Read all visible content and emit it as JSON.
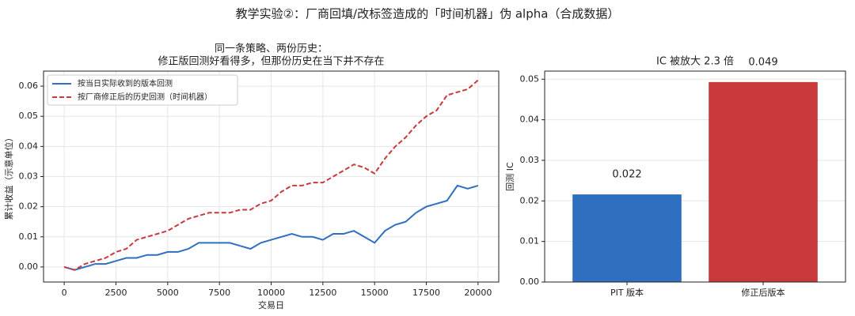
{
  "title": "教学实验②：厂商回填/改标签造成的「时间机器」伪 alpha（合成数据）",
  "chart_data": [
    {
      "type": "line",
      "title": [
        "同一条策略、两份历史：",
        "修正版回测好看得多，但那份历史在当下并不存在"
      ],
      "x_label": "交易日",
      "y_label": "累计收益（示意单位）",
      "x": [
        0,
        500,
        1000,
        1500,
        2000,
        2500,
        3000,
        3500,
        4000,
        4500,
        5000,
        5500,
        6000,
        6500,
        7000,
        7500,
        8000,
        8500,
        9000,
        9500,
        10000,
        10500,
        11000,
        11500,
        12000,
        12500,
        13000,
        13500,
        14000,
        14500,
        15000,
        15500,
        16000,
        16500,
        17000,
        17500,
        18000,
        18500,
        19000,
        19500,
        20000
      ],
      "series": [
        {
          "name": "按当日实际收到的版本回测",
          "color": "#2e6fbf",
          "dash": false,
          "values": [
            0,
            -0.001,
            0,
            0.001,
            0.001,
            0.002,
            0.003,
            0.003,
            0.004,
            0.004,
            0.005,
            0.005,
            0.006,
            0.008,
            0.008,
            0.008,
            0.008,
            0.007,
            0.006,
            0.008,
            0.009,
            0.01,
            0.011,
            0.01,
            0.01,
            0.009,
            0.011,
            0.011,
            0.012,
            0.01,
            0.008,
            0.012,
            0.014,
            0.015,
            0.018,
            0.02,
            0.021,
            0.022,
            0.027,
            0.026,
            0.027
          ]
        },
        {
          "name": "按厂商修正后的历史回测（时间机器）",
          "color": "#c8393b",
          "dash": true,
          "values": [
            0,
            -0.001,
            0.001,
            0.002,
            0.003,
            0.005,
            0.006,
            0.009,
            0.01,
            0.011,
            0.012,
            0.014,
            0.016,
            0.017,
            0.018,
            0.018,
            0.018,
            0.019,
            0.019,
            0.021,
            0.022,
            0.025,
            0.027,
            0.027,
            0.028,
            0.028,
            0.03,
            0.032,
            0.034,
            0.033,
            0.031,
            0.036,
            0.04,
            0.043,
            0.047,
            0.05,
            0.052,
            0.057,
            0.058,
            0.059,
            0.062
          ]
        }
      ],
      "xlim": [
        -1000,
        21000
      ],
      "xticks": [
        0,
        2500,
        5000,
        7500,
        10000,
        12500,
        15000,
        17500,
        20000
      ],
      "ylim": [
        -0.005,
        0.065
      ],
      "yticks": [
        {
          "value": 0,
          "label": "0.00"
        },
        {
          "value": 0.01,
          "label": "0.01"
        },
        {
          "value": 0.02,
          "label": "0.02"
        },
        {
          "value": 0.03,
          "label": "0.03"
        },
        {
          "value": 0.04,
          "label": "0.04"
        },
        {
          "value": 0.05,
          "label": "0.05"
        },
        {
          "value": 0.06,
          "label": "0.06"
        }
      ],
      "grid": true,
      "legend": "upper-left"
    },
    {
      "type": "bar",
      "title": "IC 被放大 2.3 倍",
      "y_label": "回测 IC",
      "categories": [
        "PIT 版本",
        "修正后版本"
      ],
      "values": [
        0.0216,
        0.0493
      ],
      "value_labels": [
        "0.022",
        "0.049"
      ],
      "colors": [
        "#2e6fbf",
        "#c8393b"
      ],
      "ylim": [
        0,
        0.052
      ],
      "yticks": [
        {
          "value": 0,
          "label": "0.00"
        },
        {
          "value": 0.01,
          "label": "0.01"
        },
        {
          "value": 0.02,
          "label": "0.02"
        },
        {
          "value": 0.03,
          "label": "0.03"
        },
        {
          "value": 0.04,
          "label": "0.04"
        },
        {
          "value": 0.05,
          "label": "0.05"
        }
      ],
      "grid": true
    }
  ]
}
